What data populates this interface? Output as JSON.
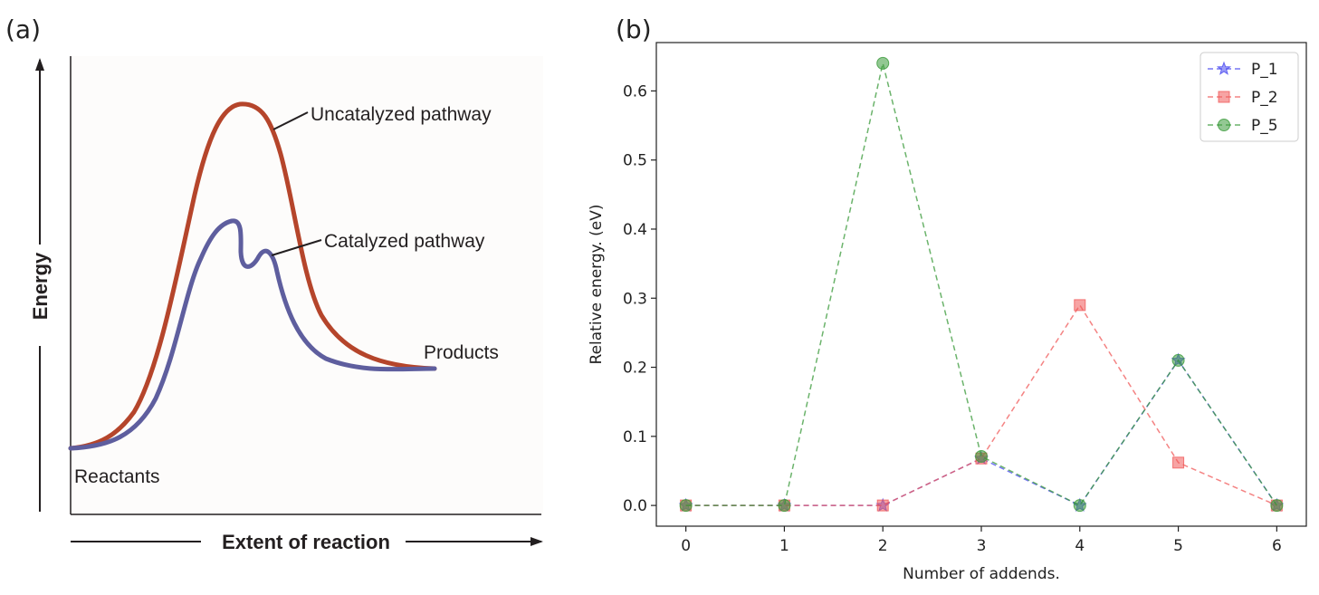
{
  "panel_a": {
    "tag": "(a)",
    "y_axis_label": "Energy",
    "x_axis_label": "Extent of reaction",
    "annotations": {
      "uncatalyzed": "Uncatalyzed pathway",
      "catalyzed": "Catalyzed pathway",
      "products": "Products",
      "reactants": "Reactants"
    },
    "colors": {
      "uncatalyzed": "#b5452b",
      "catalyzed": "#5e5e9e",
      "background": "#fdfcfb"
    }
  },
  "panel_b": {
    "tag": "(b)",
    "colors": {
      "P_1": "#4a4af0",
      "P_2": "#f05a5a",
      "P_5": "#3a9a3a"
    }
  },
  "chart_data": [
    {
      "type": "line",
      "title": "",
      "xlabel": "Extent of reaction",
      "ylabel": "Energy",
      "series": [
        {
          "name": "Uncatalyzed pathway"
        },
        {
          "name": "Catalyzed pathway"
        }
      ],
      "annotations": [
        "Uncatalyzed pathway",
        "Catalyzed pathway",
        "Products",
        "Reactants"
      ],
      "grid": false
    },
    {
      "type": "line",
      "title": "",
      "xlabel": "Number of addends.",
      "ylabel": "Relative energy. (eV)",
      "x": [
        0,
        1,
        2,
        3,
        4,
        5,
        6
      ],
      "xlim": [
        -0.3,
        6.3
      ],
      "ylim": [
        -0.03,
        0.67
      ],
      "xticks": [
        "0",
        "1",
        "2",
        "3",
        "4",
        "5",
        "6"
      ],
      "yticks": [
        "0.0",
        "0.1",
        "0.2",
        "0.3",
        "0.4",
        "0.5",
        "0.6"
      ],
      "grid": false,
      "legend": "top-right",
      "series": [
        {
          "name": "P_1",
          "marker": "star",
          "values": [
            0,
            0,
            0,
            0.068,
            0,
            0.21,
            0
          ]
        },
        {
          "name": "P_2",
          "marker": "square",
          "values": [
            0,
            0,
            0,
            0.068,
            0.29,
            0.062,
            0
          ]
        },
        {
          "name": "P_5",
          "marker": "circle",
          "values": [
            0,
            0,
            0.64,
            0.071,
            0,
            0.21,
            0
          ]
        }
      ]
    }
  ]
}
